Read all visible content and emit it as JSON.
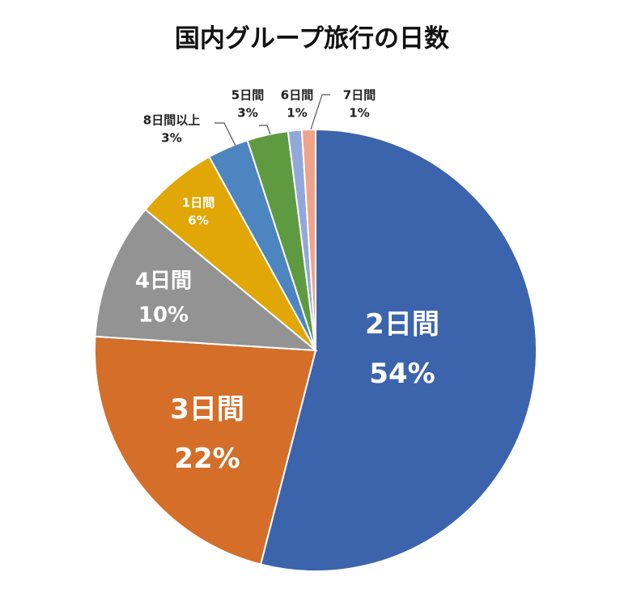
{
  "chart_data": {
    "type": "pie",
    "title": "国内グループ旅行の日数",
    "start": "top",
    "direction": "clockwise",
    "slices": [
      {
        "label": "2日間",
        "value": 54,
        "pct": "54%",
        "color": "#3C64AC"
      },
      {
        "label": "3日間",
        "value": 22,
        "pct": "22%",
        "color": "#D46E29"
      },
      {
        "label": "4日間",
        "value": 10,
        "pct": "10%",
        "color": "#939393"
      },
      {
        "label": "1日間",
        "value": 6,
        "pct": "6%",
        "color": "#E1A706"
      },
      {
        "label": "8日間以上",
        "value": 3,
        "pct": "3%",
        "color": "#4C85BF"
      },
      {
        "label": "5日間",
        "value": 3,
        "pct": "3%",
        "color": "#5E9A40"
      },
      {
        "label": "6日間",
        "value": 1,
        "pct": "1%",
        "color": "#92A7DA"
      },
      {
        "label": "7日間",
        "value": 1,
        "pct": "1%",
        "color": "#F0A389"
      }
    ]
  }
}
